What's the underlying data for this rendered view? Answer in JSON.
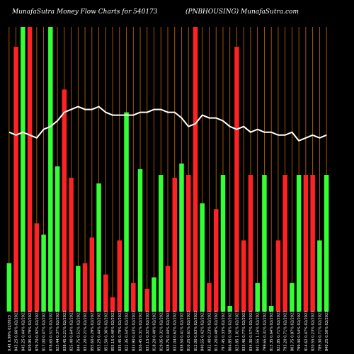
{
  "title_left": "MunafaSutra Money Flow Charts for 540173",
  "title_right": "(PNBHOUSING) MunafaSutra.com",
  "colors": {
    "background": "#000000",
    "up": "#33ff33",
    "down": "#ff2222",
    "gridline": "#cc6a00",
    "price_line": "#ffffff",
    "label": "#ffffff"
  },
  "chart_data": {
    "type": "bar",
    "title": "MunafaSutra Money Flow Charts for 540173 (PNBHOUSING) MunafaSutra.com",
    "xlabel": "",
    "ylabel": "",
    "ylim": [
      0,
      100
    ],
    "grid": true,
    "price_ylim": [
      0,
      100
    ],
    "categories": [
      "0.41 0.99% 02/2023",
      "843.25 0.66% 02/2023",
      "845.25 0.44% 02/2023",
      "829.95 0.79% 02/2023",
      "879.70 0.92% 02/2023",
      "817.00 0.47% 02/2023",
      "878.65 0.51% 02/2023",
      "823.44 0.37% 02/2023",
      "838.45 0.21% 02/2023",
      "825.40 0.64% 02/2023",
      "844.75 0.51% 02/2023",
      "831.20 0.21% 02/2023",
      "855.60 0.29% 02/2023",
      "853.25 0.44% 02/2023",
      "851.50 0.36% 02/2023",
      "855.15 0.40% 02/2023",
      "835.45 0.79% 02/2023",
      "822.35 0.54% 02/2023",
      "833.90 0.43% 02/2023",
      "826.45 0.31% 02/2023",
      "831.15 0.32% 02/2023",
      "818.20 0.40% 02/2023",
      "819.05 0.31% 02/2023",
      "828.75 0.44% 02/2023",
      "832.04 0.62% 02/2023",
      "838.50 0.41% 02/2023",
      "810.25 0.61% 02/2023",
      "812.00 0.63% 02/2023",
      "840.55 0.42% 02/2023",
      "832.40 0.23% 02/2023",
      "813.20 0.48% 02/2023",
      "797.45 0.33% 02/2023",
      "804.85 0.58% 02/2023",
      "823.85 1.01% 02/2023",
      "833.46 0.77% 02/2023",
      "834.30 0.57% 02/2023",
      "841.55 1.16% 02/2023",
      "799.65 0.31% 02/2023",
      "813.35 0.64% 02/2023",
      "822.85 0.71% 02/2023",
      "793.20 0.71% 02/2023",
      "803.75 0.87% 02/2023",
      "799.40 0.54% 02/2023",
      "814.62 0.47% 02/2023",
      "820.55 0.23% 02/2023",
      "789.30 0.71% 02/2023",
      "840.25 0.50% 02/2023"
    ],
    "directions": [
      "up",
      "down",
      "up",
      "down",
      "down",
      "up",
      "up",
      "up",
      "down",
      "down",
      "up",
      "down",
      "down",
      "up",
      "down",
      "down",
      "down",
      "up",
      "down",
      "up",
      "down",
      "up",
      "up",
      "down",
      "down",
      "up",
      "down",
      "down",
      "up",
      "down",
      "down",
      "up",
      "up",
      "down",
      "down",
      "down",
      "up",
      "up",
      "up",
      "down",
      "down",
      "up",
      "up",
      "down",
      "down",
      "up",
      "up"
    ],
    "values": [
      17,
      93,
      100,
      100,
      31,
      27,
      100,
      51,
      78,
      47,
      16,
      17,
      26,
      45,
      13,
      5,
      25,
      70,
      10,
      50,
      8,
      12,
      48,
      16,
      47,
      52,
      48,
      100,
      38,
      10,
      36,
      48,
      2,
      93,
      25,
      48,
      10,
      48,
      2,
      25,
      48,
      10,
      48,
      48,
      48,
      25,
      48
    ],
    "price_line": [
      63,
      62,
      63,
      62,
      61,
      64,
      65,
      67,
      70,
      71,
      72,
      71,
      71,
      72,
      70,
      69,
      69,
      69,
      69,
      70,
      70,
      71,
      71,
      70,
      70,
      68,
      65,
      66,
      69,
      68,
      68,
      67,
      65,
      64,
      65,
      63,
      64,
      63,
      63,
      62,
      62,
      63,
      60,
      61,
      62,
      61,
      62
    ]
  }
}
